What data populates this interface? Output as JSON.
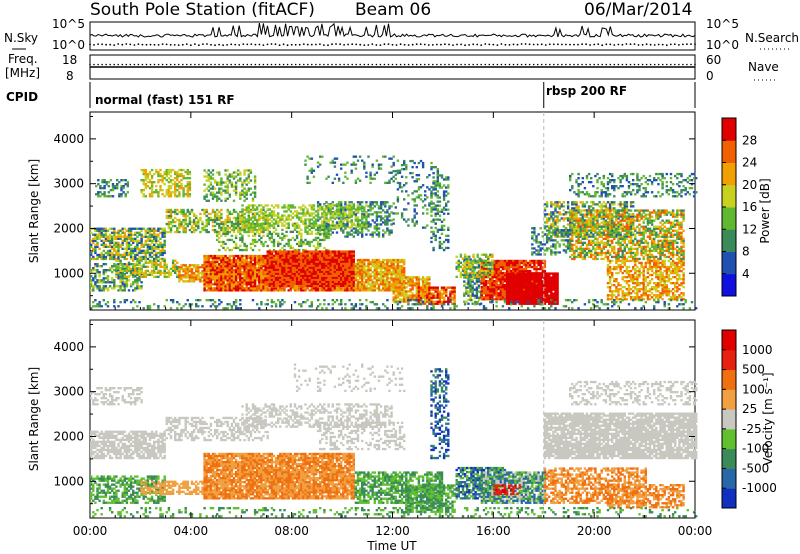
{
  "header": {
    "station": "South Pole Station (fitACF)",
    "beam": "Beam 06",
    "date": "06/Mar/2014"
  },
  "top_panels": {
    "nsky_label": "N.Sky",
    "nsearch_label": "N.Search",
    "freq_label_1": "Freq.",
    "freq_label_2": "[MHz]",
    "nave_label": "Nave",
    "cpid_label": "CPID",
    "nsky_ticks": [
      "10^5",
      "10^0"
    ],
    "nsearch_ticks": [
      "10^5",
      "10^0"
    ],
    "freq_ticks": [
      "18",
      "8"
    ],
    "nave_ticks": [
      "60",
      "0"
    ],
    "cpid_modes": [
      {
        "name": "normal (fast) 151 RF",
        "start_hour": 0
      },
      {
        "name": "rbsp 200 RF",
        "start_hour": 18
      }
    ]
  },
  "chart_data": [
    {
      "type": "heatmap",
      "panel": "power",
      "ylabel": "Slant Range [km]",
      "xlabel": "Time UT",
      "x_ticks": [
        "00:00",
        "04:00",
        "08:00",
        "12:00",
        "16:00",
        "20:00",
        "00:00"
      ],
      "x_range_hours": [
        0,
        24
      ],
      "y_ticks": [
        "1000",
        "2000",
        "3000",
        "4000"
      ],
      "y_range_km": [
        180,
        4600
      ],
      "colorbar_label": "Power [dB]",
      "colorbar_ticks": [
        "4",
        "8",
        "12",
        "16",
        "20",
        "24",
        "28"
      ],
      "colorbar_colors": [
        "#1010e0",
        "#2050b0",
        "#3a8a5a",
        "#60b830",
        "#c8d020",
        "#f0a000",
        "#f06000",
        "#e00000"
      ],
      "cpid_change_hour": 18
    },
    {
      "type": "heatmap",
      "panel": "velocity",
      "ylabel": "Slant Range [km]",
      "xlabel": "Time UT",
      "x_ticks": [
        "00:00",
        "04:00",
        "08:00",
        "12:00",
        "16:00",
        "20:00",
        "00:00"
      ],
      "x_range_hours": [
        0,
        24
      ],
      "y_ticks": [
        "1000",
        "2000",
        "3000",
        "4000"
      ],
      "y_range_km": [
        180,
        4600
      ],
      "colorbar_label": "Velocity [m s⁻¹]",
      "colorbar_ticks": [
        "1000",
        "500",
        "100",
        "25",
        "-25",
        "-100",
        "-500",
        "-1000"
      ],
      "colorbar_colors": [
        "#1030c0",
        "#2868a8",
        "#3a8a5a",
        "#60c030",
        "#c8c8c0",
        "#f0a040",
        "#f07010",
        "#e82010",
        "#e00000"
      ],
      "cpid_change_hour": 18
    }
  ],
  "x_axis_title": "Time UT"
}
